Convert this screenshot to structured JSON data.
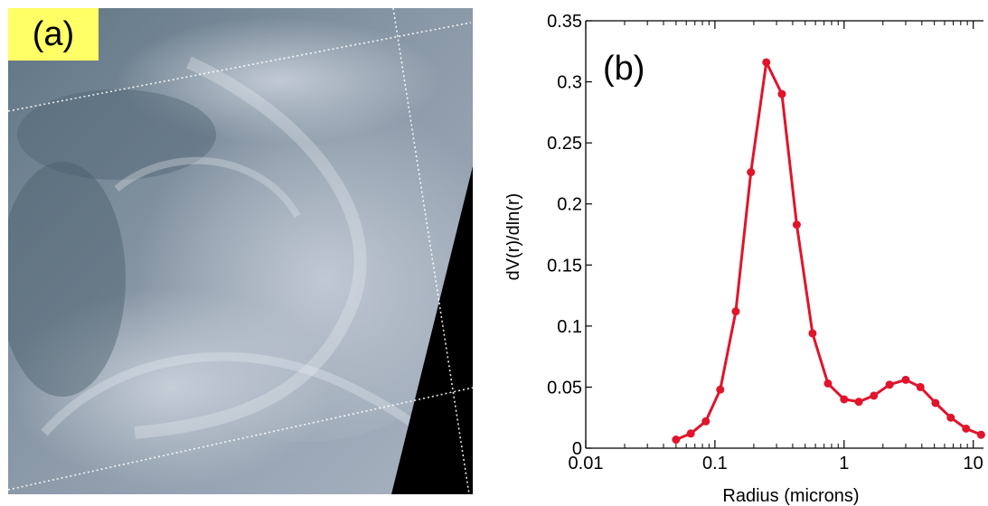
{
  "panel_a": {
    "label": "(a)",
    "label_background": "#ffff66"
  },
  "chart_data": {
    "type": "line",
    "panel_label": "(b)",
    "title": "",
    "xlabel": "Radius (microns)",
    "ylabel": "dV(r)/dln(r)",
    "xscale": "log",
    "xlim": [
      0.01,
      12
    ],
    "ylim": [
      0,
      0.35
    ],
    "x_ticks": [
      0.01,
      0.1,
      1,
      10
    ],
    "x_tick_labels": [
      "0.01",
      "0.1",
      "1",
      "10"
    ],
    "y_ticks": [
      0,
      0.05,
      0.1,
      0.15,
      0.2,
      0.25,
      0.3,
      0.35
    ],
    "y_tick_labels": [
      "0",
      "0.05",
      "0.1",
      "0.15",
      "0.2",
      "0.25",
      "0.3",
      "0.35"
    ],
    "grid": false,
    "line_color": "#e0142b",
    "series": [
      {
        "x": [
          0.05,
          0.065,
          0.085,
          0.11,
          0.145,
          0.19,
          0.25,
          0.33,
          0.43,
          0.57,
          0.75,
          1.0,
          1.3,
          1.7,
          2.25,
          3.0,
          3.9,
          5.1,
          6.7,
          8.8,
          11.5
        ],
        "values": [
          0.007,
          0.012,
          0.022,
          0.048,
          0.112,
          0.226,
          0.316,
          0.29,
          0.183,
          0.094,
          0.053,
          0.04,
          0.038,
          0.043,
          0.052,
          0.056,
          0.05,
          0.037,
          0.025,
          0.016,
          0.011
        ]
      }
    ]
  }
}
